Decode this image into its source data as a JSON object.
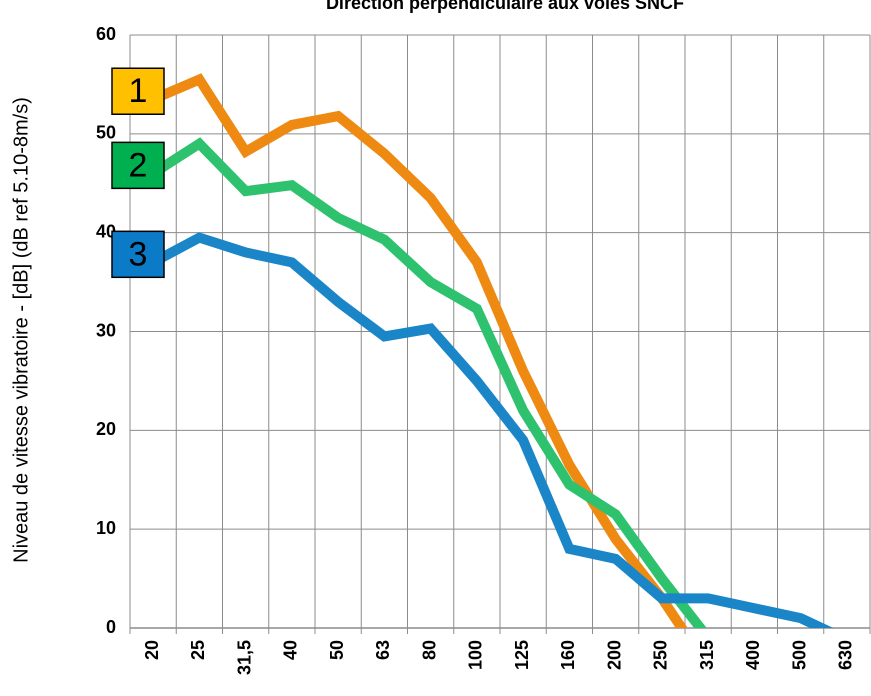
{
  "chart_data": {
    "type": "line",
    "title": "Direction perpendiculaire aux voies SNCF",
    "y_label": "Niveau de vitesse vibratoire - [dB] (dB ref 5.10-8m/s)",
    "categories": [
      "20",
      "25",
      "31,5",
      "40",
      "50",
      "63",
      "80",
      "100",
      "125",
      "160",
      "200",
      "250",
      "315",
      "400",
      "500",
      "630"
    ],
    "series": [
      {
        "name": "1",
        "color": "#ee8a12",
        "tag_color": "#ffc000",
        "values": [
          53.5,
          55.5,
          48.2,
          50.9,
          51.8,
          48,
          43.5,
          37,
          26,
          16.5,
          9,
          3,
          -4,
          null,
          null,
          null
        ]
      },
      {
        "name": "2",
        "color": "#2ec26e",
        "tag_color": "#00b050",
        "values": [
          46,
          49,
          44.2,
          44.8,
          41.5,
          39.3,
          35,
          32.3,
          22,
          14.5,
          11.5,
          5,
          -1,
          null,
          null,
          null
        ]
      },
      {
        "name": "3",
        "color": "#1a86c8",
        "tag_color": "#0b7bc8",
        "values": [
          37,
          39.5,
          38,
          37,
          33,
          29.5,
          30.3,
          25,
          19,
          8,
          7,
          3,
          3,
          2,
          1,
          -1.2
        ]
      }
    ],
    "ylim": [
      0,
      60
    ],
    "yticks": [
      0,
      10,
      20,
      30,
      40,
      50,
      60
    ],
    "grid": true
  }
}
